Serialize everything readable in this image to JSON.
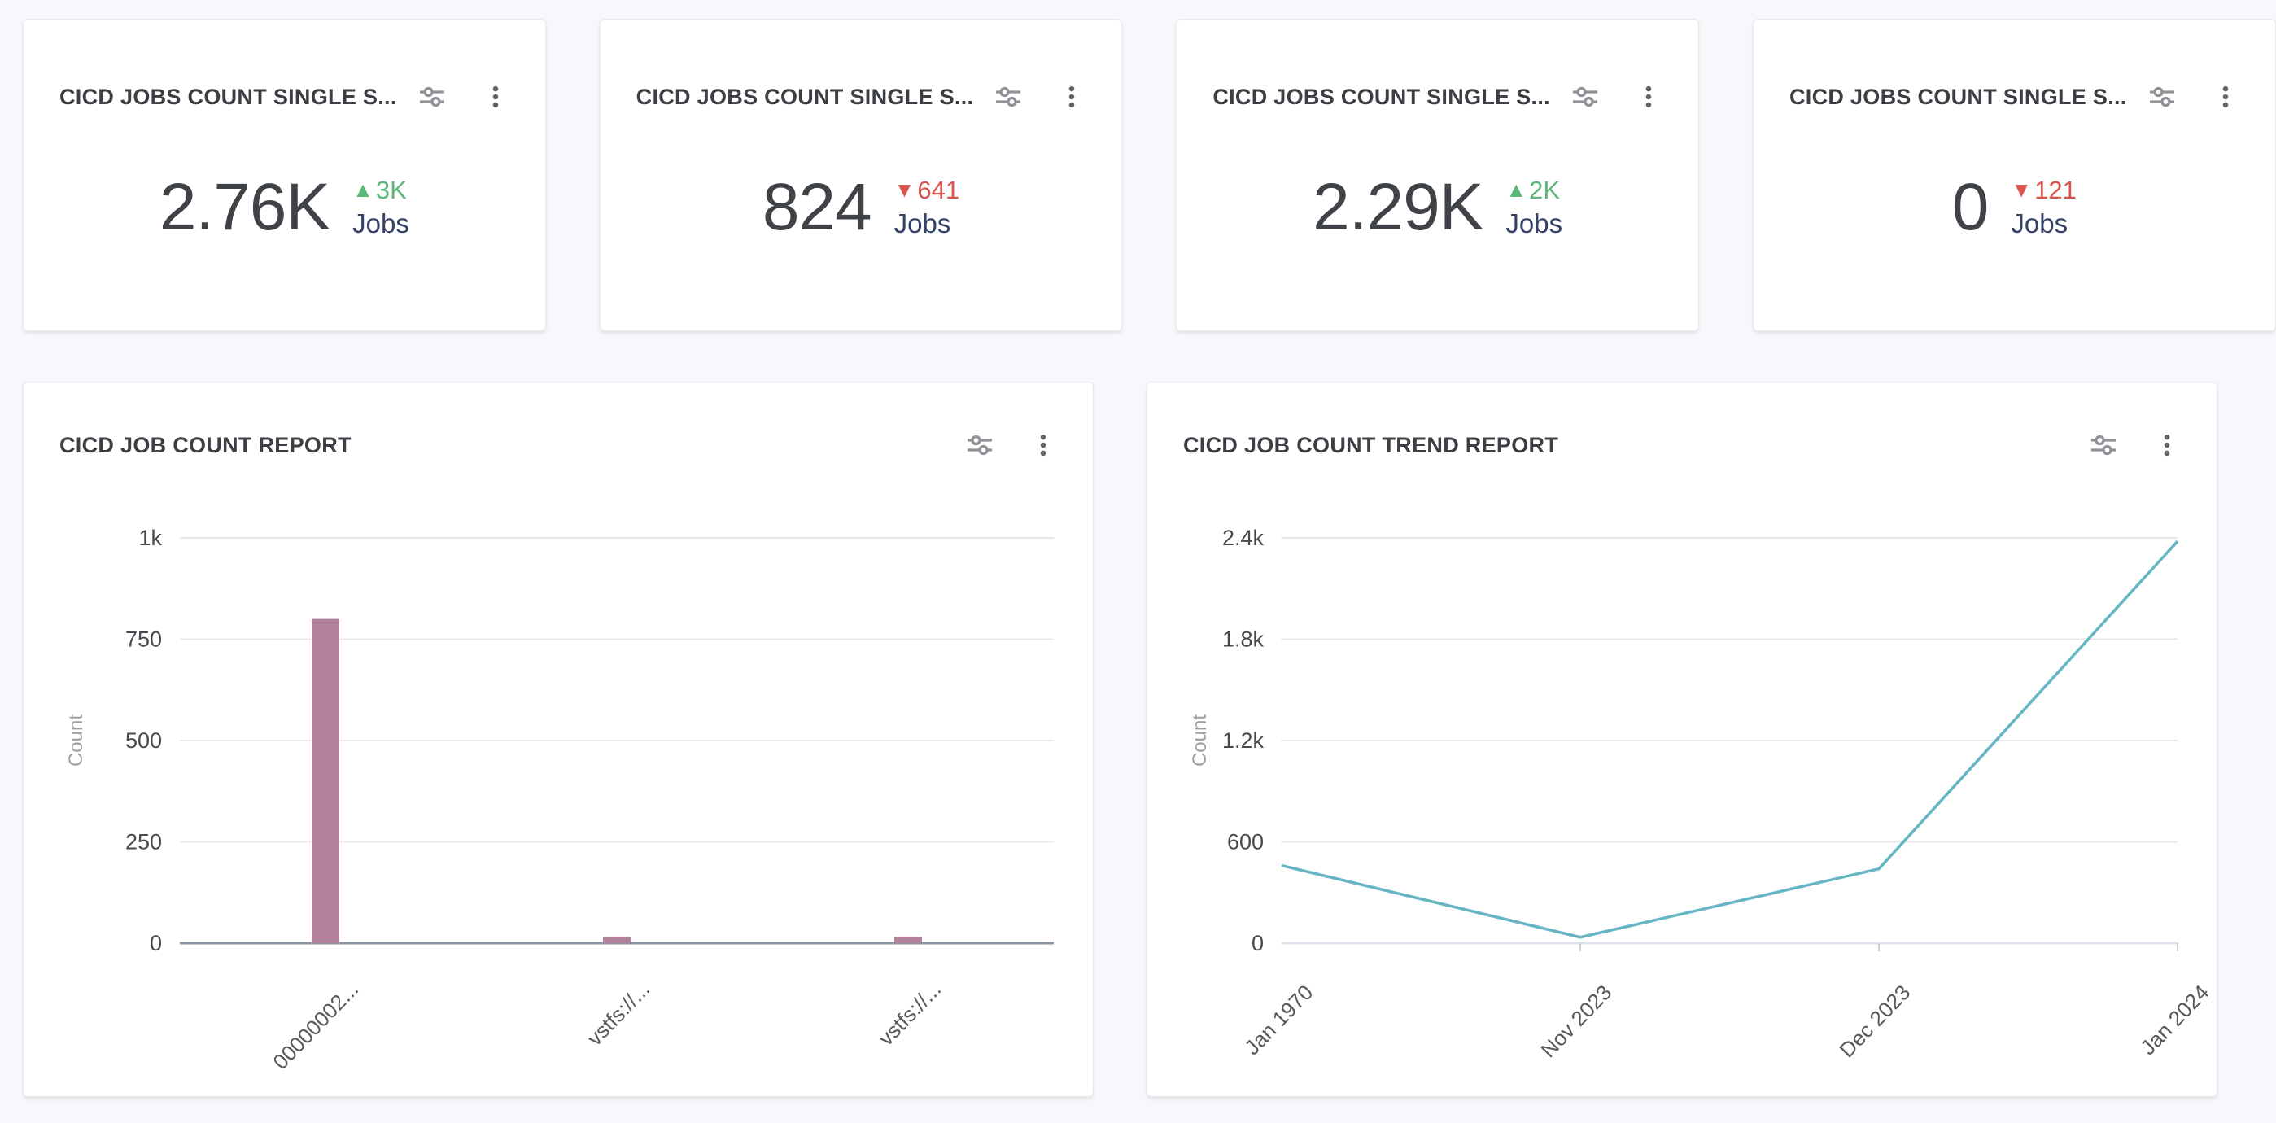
{
  "page": {
    "background": "#f7f8fb"
  },
  "colors": {
    "up": "#5cb87a",
    "down": "#d9544a",
    "value_text": "#3f4246",
    "unit_text": "#334266",
    "icon_gray": "#8f9296"
  },
  "icons": {
    "up_arrow": "▲",
    "down_arrow": "▼"
  },
  "kpi_cards": [
    {
      "title": "CICD JOBS COUNT SINGLE S...",
      "value": "2.76K",
      "delta": "3K",
      "direction": "up",
      "unit": "Jobs"
    },
    {
      "title": "CICD JOBS COUNT SINGLE S...",
      "value": "824",
      "delta": "641",
      "direction": "down",
      "unit": "Jobs"
    },
    {
      "title": "CICD JOBS COUNT SINGLE S...",
      "value": "2.29K",
      "delta": "2K",
      "direction": "up",
      "unit": "Jobs"
    },
    {
      "title": "CICD JOBS COUNT SINGLE S...",
      "value": "0",
      "delta": "121",
      "direction": "down",
      "unit": "Jobs"
    }
  ],
  "chart_data": [
    {
      "id": "job-count-report",
      "type": "bar",
      "title": "CICD JOB COUNT REPORT",
      "categories": [
        "00000002...",
        "vstfs://...",
        "vstfs://..."
      ],
      "values": [
        800,
        15,
        15
      ],
      "xlabel": "",
      "ylabel": "Count",
      "ylim": [
        0,
        1000
      ],
      "yticks": [
        {
          "v": 0,
          "label": "0"
        },
        {
          "v": 250,
          "label": "250"
        },
        {
          "v": 500,
          "label": "500"
        },
        {
          "v": 750,
          "label": "750"
        },
        {
          "v": 1000,
          "label": "1k"
        }
      ],
      "grid": true,
      "legend": false,
      "color": "#b2819c",
      "axis_color": "#8d93a2"
    },
    {
      "id": "job-count-trend-report",
      "type": "line",
      "title": "CICD JOB COUNT TREND REPORT",
      "categories": [
        "Jan 1970",
        "Nov 2023",
        "Dec 2023",
        "Jan 2024"
      ],
      "values": [
        460,
        35,
        440,
        2380
      ],
      "xlabel": "",
      "ylabel": "Count",
      "ylim": [
        0,
        2400
      ],
      "yticks": [
        {
          "v": 0,
          "label": "0"
        },
        {
          "v": 600,
          "label": "600"
        },
        {
          "v": 1200,
          "label": "1.2k"
        },
        {
          "v": 1800,
          "label": "1.8k"
        },
        {
          "v": 2400,
          "label": "2.4k"
        }
      ],
      "grid": true,
      "legend": false,
      "color": "#66b5c4",
      "axis_color": "#dfe3ea"
    }
  ]
}
